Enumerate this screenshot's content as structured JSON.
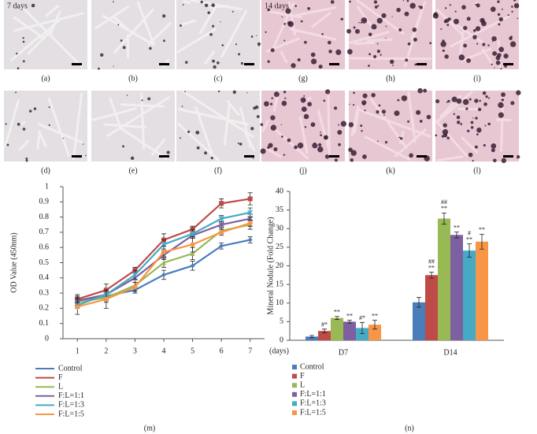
{
  "photo_titles": [
    "7 days",
    "14 days"
  ],
  "photo_labels": [
    "(a)",
    "(b)",
    "(c)",
    "(g)",
    "(h)",
    "(i)",
    "(d)",
    "(e)",
    "(f)",
    "(j)",
    "(k)",
    "(l)"
  ],
  "chart_data": [
    {
      "type": "line",
      "panel_label": "(m)",
      "y_label": "OD Value (450nm)",
      "x_unit": "(days)",
      "x": [
        1,
        2,
        3,
        4,
        5,
        6,
        7
      ],
      "xlim": [
        0.5,
        7.5
      ],
      "xticks": [
        1,
        2,
        3,
        4,
        5,
        6,
        7
      ],
      "ylim": [
        0,
        1
      ],
      "yticks": [
        0,
        0.1,
        0.2,
        0.3,
        0.4,
        0.5,
        0.6,
        0.7,
        0.8,
        0.9,
        1
      ],
      "series": [
        {
          "name": "Control",
          "color": "#4a7ebb",
          "marker": "diamond",
          "values": [
            0.25,
            0.28,
            0.32,
            0.42,
            0.48,
            0.61,
            0.65
          ],
          "errors": [
            0.03,
            0.03,
            0.02,
            0.03,
            0.03,
            0.02,
            0.02
          ]
        },
        {
          "name": "F",
          "color": "#be4b48",
          "marker": "square",
          "values": [
            0.26,
            0.32,
            0.45,
            0.65,
            0.72,
            0.89,
            0.92
          ],
          "errors": [
            0.03,
            0.04,
            0.02,
            0.04,
            0.02,
            0.03,
            0.04
          ]
        },
        {
          "name": "L",
          "color": "#98b954",
          "marker": "triangle",
          "values": [
            0.24,
            0.27,
            0.35,
            0.5,
            0.56,
            0.71,
            0.75
          ],
          "errors": [
            0.02,
            0.03,
            0.02,
            0.03,
            0.04,
            0.02,
            0.03
          ]
        },
        {
          "name": "F:L=1:1",
          "color": "#7d60a0",
          "marker": "cross",
          "values": [
            0.25,
            0.29,
            0.4,
            0.55,
            0.68,
            0.75,
            0.79
          ],
          "errors": [
            0.02,
            0.03,
            0.03,
            0.03,
            0.02,
            0.02,
            0.03
          ]
        },
        {
          "name": "F:L=1:3",
          "color": "#46aac5",
          "marker": "star",
          "values": [
            0.22,
            0.29,
            0.42,
            0.62,
            0.69,
            0.79,
            0.83
          ],
          "errors": [
            0.02,
            0.03,
            0.03,
            0.03,
            0.03,
            0.02,
            0.03
          ]
        },
        {
          "name": "F:L=1:5",
          "color": "#f79646",
          "marker": "circle",
          "values": [
            0.21,
            0.26,
            0.34,
            0.57,
            0.62,
            0.7,
            0.76
          ],
          "errors": [
            0.05,
            0.06,
            0.03,
            0.04,
            0.05,
            0.02,
            0.02
          ]
        }
      ]
    },
    {
      "type": "bar",
      "panel_label": "(n)",
      "y_label": "Mineral Nodule (Fold Change)",
      "categories": [
        "D7",
        "D14"
      ],
      "ylim": [
        0,
        40
      ],
      "yticks": [
        0,
        5,
        10,
        15,
        20,
        25,
        30,
        35,
        40
      ],
      "series": [
        {
          "name": "Control",
          "color": "#4a7ebb",
          "values": [
            1.0,
            10.2
          ],
          "errors": [
            0.3,
            1.3
          ],
          "significance": [
            null,
            null
          ]
        },
        {
          "name": "F",
          "color": "#be4b48",
          "values": [
            2.5,
            17.5
          ],
          "errors": [
            0.5,
            0.8
          ],
          "significance": [
            [
              "#*"
            ],
            [
              "##",
              "**"
            ]
          ]
        },
        {
          "name": "L",
          "color": "#98b954",
          "values": [
            6.0,
            32.7
          ],
          "errors": [
            0.4,
            1.5
          ],
          "significance": [
            [
              "**"
            ],
            [
              "##",
              "**"
            ]
          ]
        },
        {
          "name": "F:L=1:1",
          "color": "#7d60a0",
          "values": [
            5.0,
            28.3
          ],
          "errors": [
            0.4,
            0.8
          ],
          "significance": [
            [
              "**"
            ],
            [
              "**"
            ]
          ]
        },
        {
          "name": "F:L=1:3",
          "color": "#46aac5",
          "values": [
            3.3,
            24.1
          ],
          "errors": [
            1.5,
            1.8
          ],
          "significance": [
            [
              "#*"
            ],
            [
              "#",
              "**"
            ]
          ]
        },
        {
          "name": "F:L=1:5",
          "color": "#f79646",
          "values": [
            4.2,
            26.5
          ],
          "errors": [
            1.2,
            2.0
          ],
          "significance": [
            [
              "**"
            ],
            [
              "**"
            ]
          ]
        }
      ]
    }
  ]
}
